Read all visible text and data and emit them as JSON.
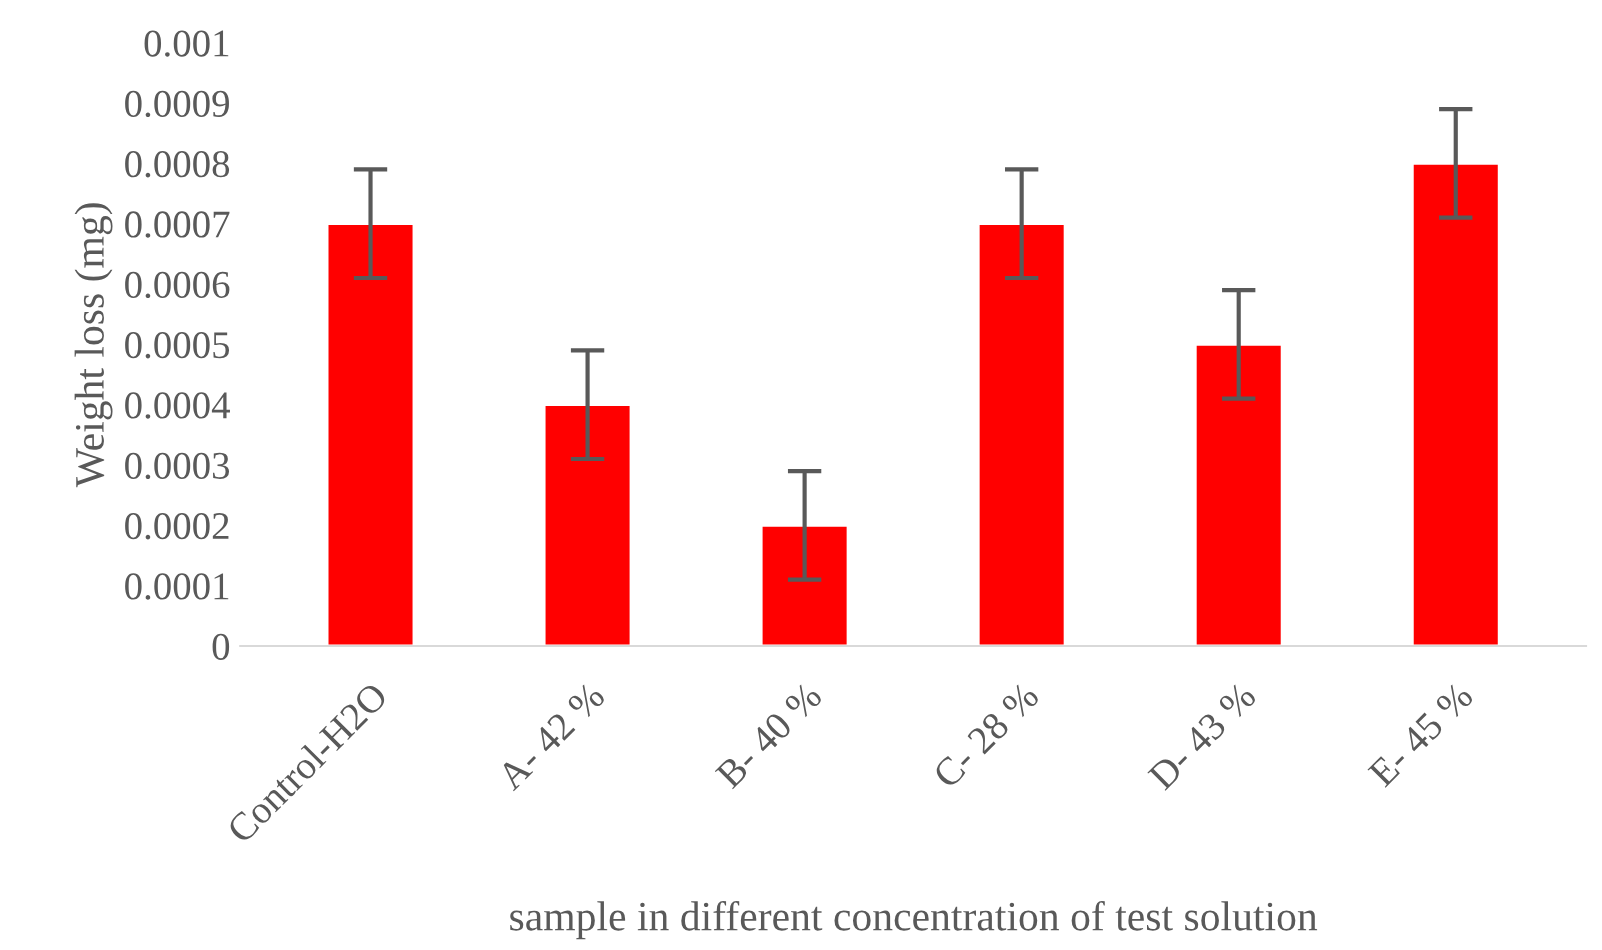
{
  "chart_data": {
    "type": "bar",
    "xlabel": "sample in different concentration of test solution",
    "ylabel": "Weight loss (mg)",
    "categories": [
      "Control-H2O",
      "A- 42 %",
      "B- 40 %",
      "C- 28 %",
      "D- 43 %",
      "E- 45 %"
    ],
    "values": [
      0.0007,
      0.0004,
      0.0002,
      0.0007,
      0.0005,
      0.0008
    ],
    "errors": [
      9e-05,
      9e-05,
      9e-05,
      9e-05,
      9e-05,
      9e-05
    ],
    "color": "#ff0000",
    "ylim": [
      0,
      0.001
    ],
    "yticks": [
      0,
      0.0001,
      0.0002,
      0.0003,
      0.0004,
      0.0005,
      0.0006,
      0.0007,
      0.0008,
      0.0009,
      0.001
    ],
    "grid": false,
    "legend": false
  }
}
